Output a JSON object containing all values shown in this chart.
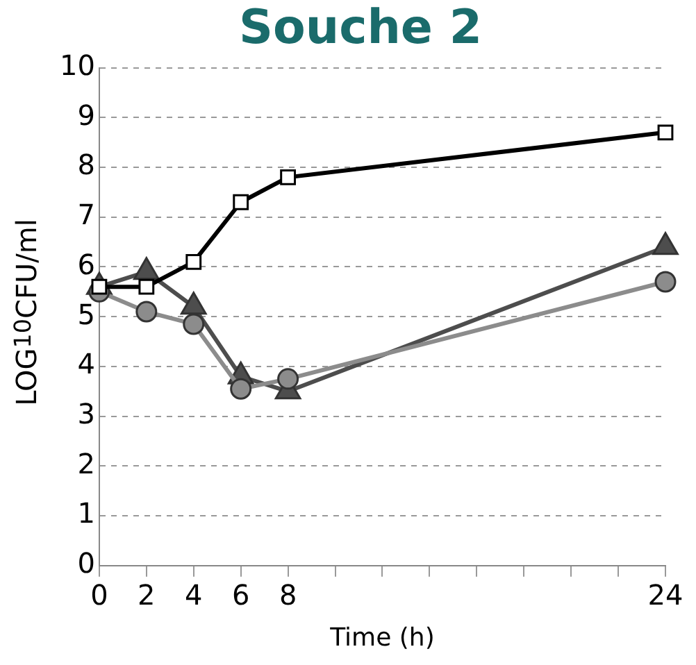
{
  "chart_data": {
    "type": "line",
    "title": "Souche 2",
    "xlabel": "Time (h)",
    "ylabel": "LOG$_{10}$CFU/ml",
    "x": [
      0,
      2,
      4,
      6,
      8,
      24
    ],
    "xlim": [
      0,
      24
    ],
    "xticks": [
      0,
      2,
      4,
      6,
      8,
      {
        "value": 10,
        "label": null
      },
      {
        "value": 12,
        "label": null
      },
      {
        "value": 14,
        "label": null
      },
      {
        "value": 16,
        "label": null
      },
      {
        "value": 18,
        "label": null
      },
      {
        "value": 20,
        "label": null
      },
      {
        "value": 22,
        "label": null
      },
      24
    ],
    "ylim": [
      0,
      10
    ],
    "yticks": [
      0,
      1,
      2,
      3,
      4,
      5,
      6,
      7,
      8,
      9,
      10
    ],
    "grid": "y",
    "legend": false,
    "series": [
      {
        "color": "#000000",
        "marker": "square",
        "values": [
          5.6,
          5.6,
          6.1,
          7.3,
          7.8,
          8.7
        ]
      },
      {
        "color": "#8c8c8c",
        "marker": "circle",
        "values": [
          5.5,
          5.1,
          4.85,
          3.55,
          3.75,
          5.7
        ]
      },
      {
        "color": "#4d4d4d",
        "marker": "triangle",
        "values": [
          5.6,
          5.9,
          5.2,
          3.8,
          3.5,
          6.4
        ]
      }
    ]
  }
}
